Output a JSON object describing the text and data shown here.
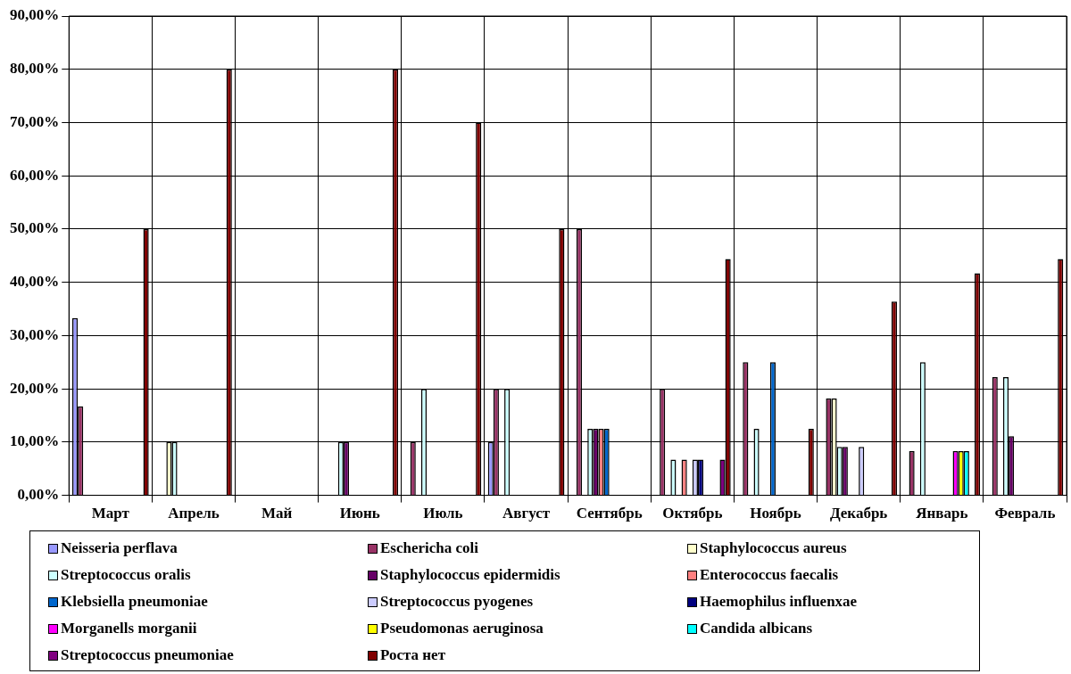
{
  "chart_data": {
    "type": "bar",
    "categories": [
      "Март",
      "Апрель",
      "Май",
      "Июнь",
      "Июль",
      "Август",
      "Сентябрь",
      "Октябрь",
      "Ноябрь",
      "Декабрь",
      "Январь",
      "Февраль"
    ],
    "ylim": [
      0,
      90
    ],
    "yticks": [
      {
        "value": 0,
        "label": "0,00%"
      },
      {
        "value": 10,
        "label": "10,00%"
      },
      {
        "value": 20,
        "label": "20,00%"
      },
      {
        "value": 30,
        "label": "30,00%"
      },
      {
        "value": 40,
        "label": "40,00%"
      },
      {
        "value": 50,
        "label": "50,00%"
      },
      {
        "value": 60,
        "label": "60,00%"
      },
      {
        "value": 70,
        "label": "70,00%"
      },
      {
        "value": 80,
        "label": "80,00%"
      },
      {
        "value": 90,
        "label": "90,00%"
      }
    ],
    "grid": true,
    "legend": "bottom",
    "series": [
      {
        "name": "Neisseria perflava",
        "color": "#9999ff",
        "values": [
          33.3,
          null,
          null,
          null,
          null,
          10,
          null,
          null,
          null,
          null,
          null,
          null
        ]
      },
      {
        "name": "Eschericha coli",
        "color": "#993366",
        "values": [
          16.7,
          null,
          null,
          null,
          10,
          20,
          50,
          20,
          25,
          18.2,
          8.3,
          22.2
        ]
      },
      {
        "name": "Staphylococcus aureus",
        "color": "#ffffcc",
        "values": [
          null,
          10,
          null,
          null,
          null,
          null,
          null,
          null,
          null,
          18.2,
          null,
          null
        ]
      },
      {
        "name": "Streptococcus oralis",
        "color": "#ccffff",
        "values": [
          null,
          10,
          null,
          10,
          20,
          20,
          12.5,
          6.7,
          12.5,
          9.1,
          25,
          22.2
        ]
      },
      {
        "name": "Staphylococcus epidermidis",
        "color": "#660066",
        "values": [
          null,
          null,
          null,
          10,
          null,
          null,
          12.5,
          null,
          null,
          9.1,
          null,
          11.1
        ]
      },
      {
        "name": "Enterococcus faecalis",
        "color": "#ff8080",
        "values": [
          null,
          null,
          null,
          null,
          null,
          null,
          12.5,
          6.7,
          null,
          null,
          null,
          null
        ]
      },
      {
        "name": "Klebsiella pneumoniae",
        "color": "#0066cc",
        "values": [
          null,
          null,
          null,
          null,
          null,
          null,
          12.5,
          null,
          25,
          null,
          null,
          null
        ]
      },
      {
        "name": "Streptococcus pyogenes",
        "color": "#ccccff",
        "values": [
          null,
          null,
          null,
          null,
          null,
          null,
          null,
          6.7,
          null,
          9.1,
          null,
          null
        ]
      },
      {
        "name": "Haemophilus influenxae",
        "color": "#000080",
        "values": [
          null,
          null,
          null,
          null,
          null,
          null,
          null,
          6.7,
          null,
          null,
          null,
          null
        ]
      },
      {
        "name": "Morganells morganii",
        "color": "#ff00ff",
        "values": [
          null,
          null,
          null,
          null,
          null,
          null,
          null,
          null,
          null,
          null,
          8.3,
          null
        ]
      },
      {
        "name": "Pseudomonas aeruginosa",
        "color": "#ffff00",
        "values": [
          null,
          null,
          null,
          null,
          null,
          null,
          null,
          null,
          null,
          null,
          8.3,
          null
        ]
      },
      {
        "name": "Candida albicans",
        "color": "#00ffff",
        "values": [
          null,
          null,
          null,
          null,
          null,
          null,
          null,
          null,
          null,
          null,
          8.3,
          null
        ]
      },
      {
        "name": "Streptococcus pneumoniae",
        "color": "#800080",
        "values": [
          null,
          null,
          null,
          null,
          null,
          null,
          null,
          6.7,
          null,
          null,
          null,
          null
        ]
      },
      {
        "name": "Роста нет",
        "color": "#800000",
        "values": [
          50,
          80,
          null,
          80,
          70,
          50,
          null,
          44.4,
          12.5,
          36.4,
          41.7,
          44.4
        ]
      }
    ]
  }
}
